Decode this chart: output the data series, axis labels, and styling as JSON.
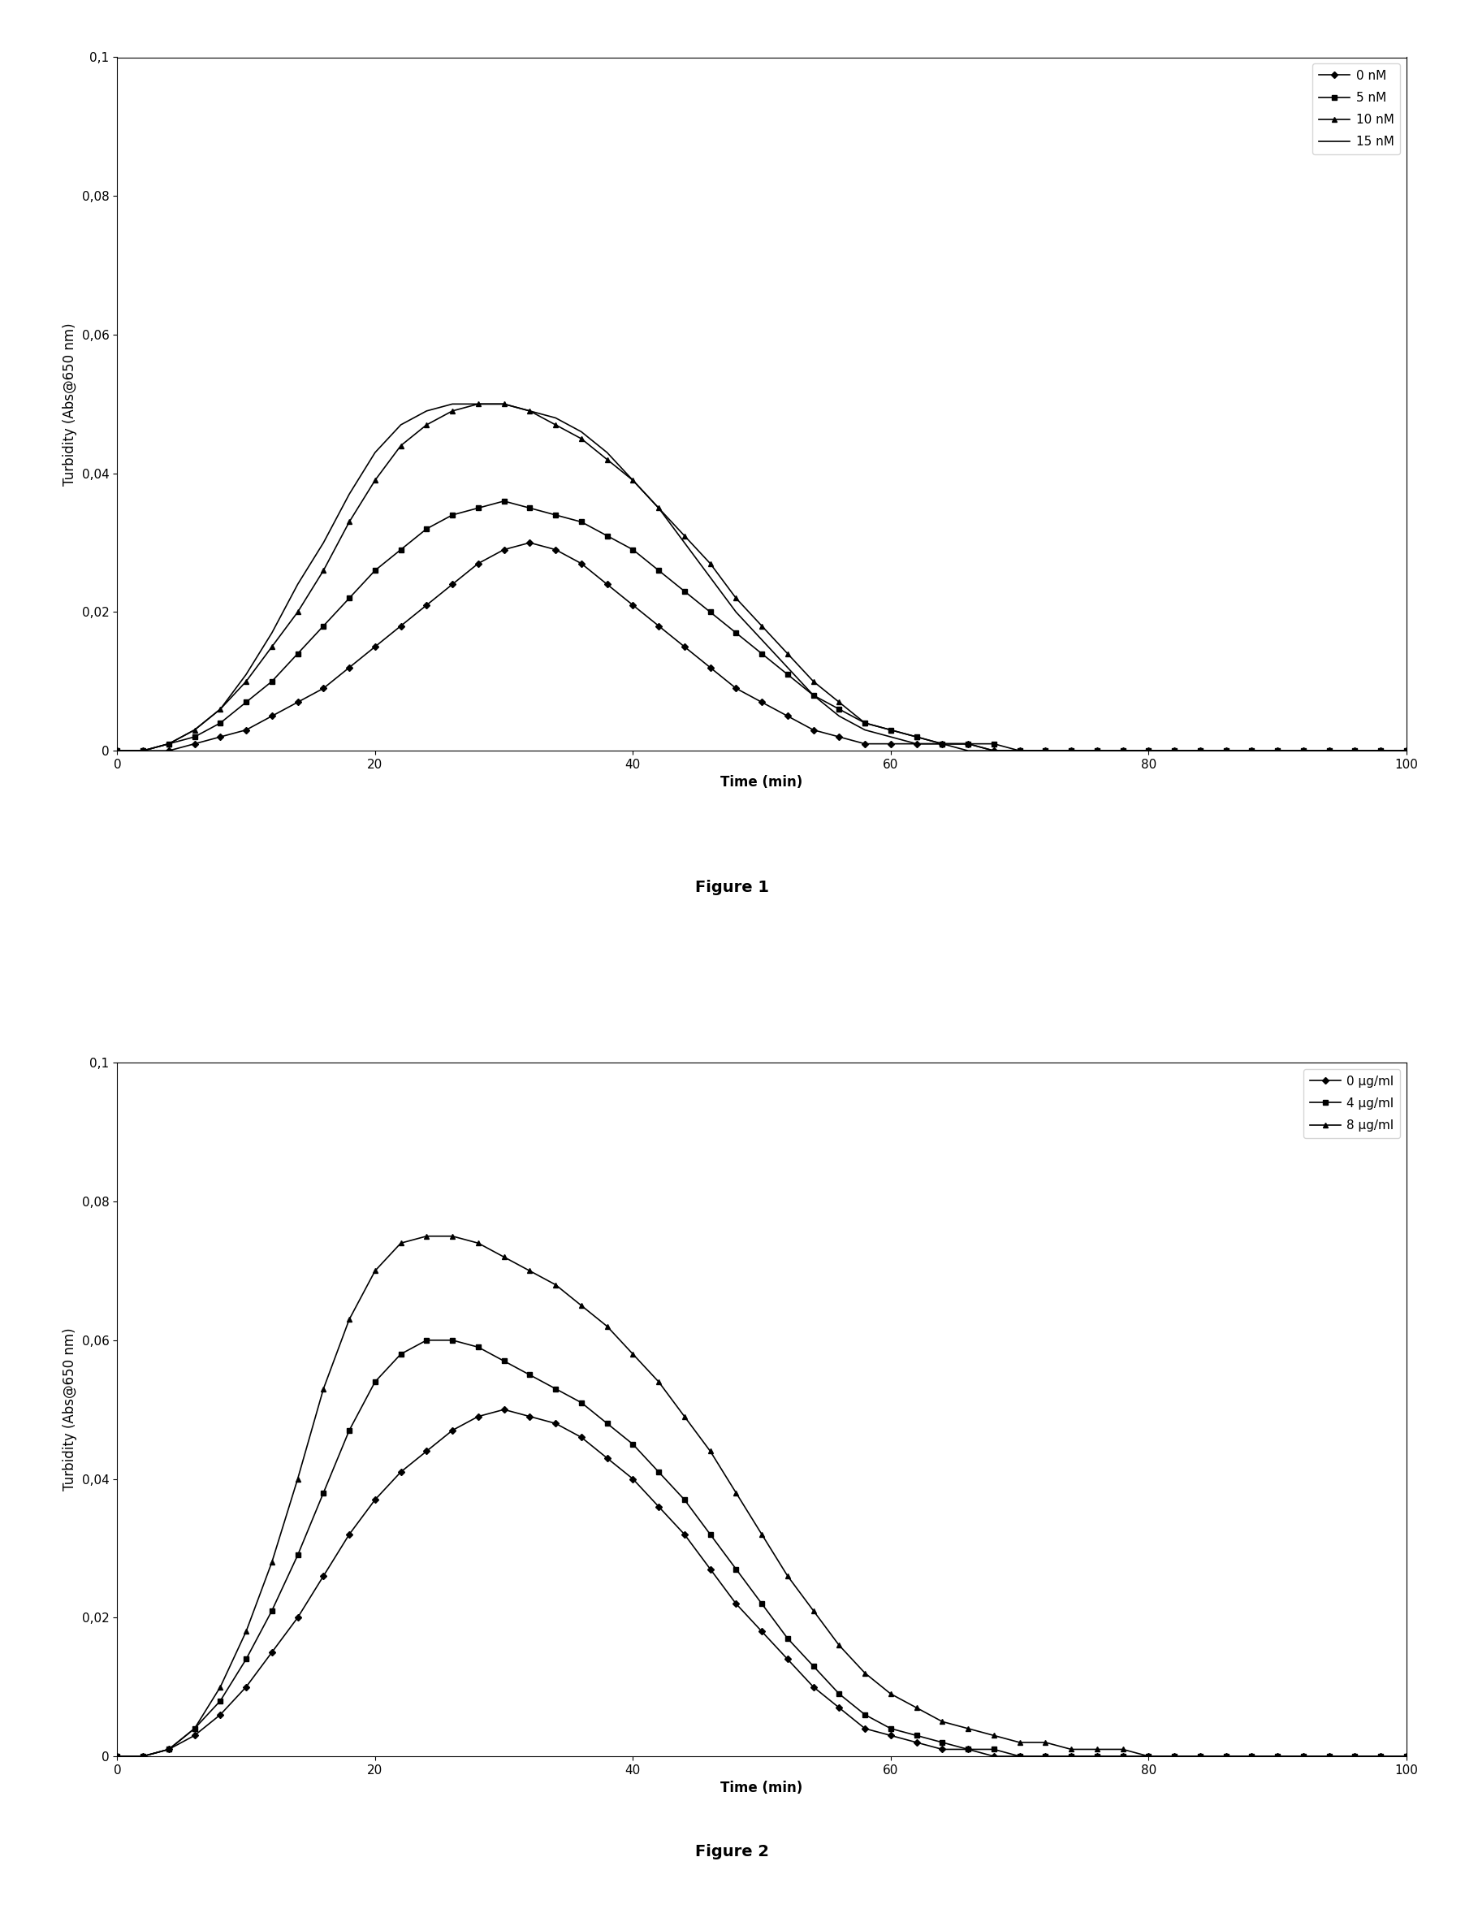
{
  "fig1": {
    "title": "Figure 1",
    "ylabel": "Turbidity (Abs@650 nm)",
    "xlabel": "Time (min)",
    "ylim": [
      0,
      0.1
    ],
    "xlim": [
      0,
      100
    ],
    "yticks": [
      0,
      0.02,
      0.04,
      0.06,
      0.08,
      0.1
    ],
    "ytick_labels": [
      "0",
      "0,02",
      "0,04",
      "0,06",
      "0,08",
      "0,1"
    ],
    "xticks": [
      0,
      20,
      40,
      60,
      80,
      100
    ],
    "series": [
      {
        "label": "0 nM",
        "marker": "D",
        "x": [
          0,
          2,
          4,
          6,
          8,
          10,
          12,
          14,
          16,
          18,
          20,
          22,
          24,
          26,
          28,
          30,
          32,
          34,
          36,
          38,
          40,
          42,
          44,
          46,
          48,
          50,
          52,
          54,
          56,
          58,
          60,
          62,
          64,
          66,
          68,
          70,
          72,
          74,
          76,
          78,
          80,
          82,
          84,
          86,
          88,
          90,
          92,
          94,
          96,
          98,
          100
        ],
        "y": [
          0,
          0,
          0,
          0.001,
          0.002,
          0.003,
          0.005,
          0.007,
          0.009,
          0.012,
          0.015,
          0.018,
          0.021,
          0.024,
          0.027,
          0.029,
          0.03,
          0.029,
          0.027,
          0.024,
          0.021,
          0.018,
          0.015,
          0.012,
          0.009,
          0.007,
          0.005,
          0.003,
          0.002,
          0.001,
          0.001,
          0.001,
          0.001,
          0.001,
          0,
          0,
          0,
          0,
          0,
          0,
          0,
          0,
          0,
          0,
          0,
          0,
          0,
          0,
          0,
          0,
          0
        ]
      },
      {
        "label": "5 nM",
        "marker": "s",
        "x": [
          0,
          2,
          4,
          6,
          8,
          10,
          12,
          14,
          16,
          18,
          20,
          22,
          24,
          26,
          28,
          30,
          32,
          34,
          36,
          38,
          40,
          42,
          44,
          46,
          48,
          50,
          52,
          54,
          56,
          58,
          60,
          62,
          64,
          66,
          68,
          70,
          72,
          74,
          76,
          78,
          80,
          82,
          84,
          86,
          88,
          90,
          92,
          94,
          96,
          98,
          100
        ],
        "y": [
          0,
          0,
          0.001,
          0.002,
          0.004,
          0.007,
          0.01,
          0.014,
          0.018,
          0.022,
          0.026,
          0.029,
          0.032,
          0.034,
          0.035,
          0.036,
          0.035,
          0.034,
          0.033,
          0.031,
          0.029,
          0.026,
          0.023,
          0.02,
          0.017,
          0.014,
          0.011,
          0.008,
          0.006,
          0.004,
          0.003,
          0.002,
          0.001,
          0.001,
          0.001,
          0,
          0,
          0,
          0,
          0,
          0,
          0,
          0,
          0,
          0,
          0,
          0,
          0,
          0,
          0,
          0
        ]
      },
      {
        "label": "10 nM",
        "marker": "^",
        "x": [
          0,
          2,
          4,
          6,
          8,
          10,
          12,
          14,
          16,
          18,
          20,
          22,
          24,
          26,
          28,
          30,
          32,
          34,
          36,
          38,
          40,
          42,
          44,
          46,
          48,
          50,
          52,
          54,
          56,
          58,
          60,
          62,
          64,
          66,
          68,
          70,
          72,
          74,
          76,
          78,
          80,
          82,
          84,
          86,
          88,
          90,
          92,
          94,
          96,
          98,
          100
        ],
        "y": [
          0,
          0,
          0.001,
          0.003,
          0.006,
          0.01,
          0.015,
          0.02,
          0.026,
          0.033,
          0.039,
          0.044,
          0.047,
          0.049,
          0.05,
          0.05,
          0.049,
          0.047,
          0.045,
          0.042,
          0.039,
          0.035,
          0.031,
          0.027,
          0.022,
          0.018,
          0.014,
          0.01,
          0.007,
          0.004,
          0.003,
          0.002,
          0.001,
          0.001,
          0,
          0,
          0,
          0,
          0,
          0,
          0,
          0,
          0,
          0,
          0,
          0,
          0,
          0,
          0,
          0,
          0
        ]
      },
      {
        "label": "15 nM",
        "marker": null,
        "x": [
          0,
          2,
          4,
          6,
          8,
          10,
          12,
          14,
          16,
          18,
          20,
          22,
          24,
          26,
          28,
          30,
          32,
          34,
          36,
          38,
          40,
          42,
          44,
          46,
          48,
          50,
          52,
          54,
          56,
          58,
          60,
          62,
          64,
          66,
          68,
          70,
          72,
          74,
          76,
          78,
          80,
          82,
          84,
          86,
          88,
          90,
          92,
          94,
          96,
          98,
          100
        ],
        "y": [
          0,
          0,
          0.001,
          0.003,
          0.006,
          0.011,
          0.017,
          0.024,
          0.03,
          0.037,
          0.043,
          0.047,
          0.049,
          0.05,
          0.05,
          0.05,
          0.049,
          0.048,
          0.046,
          0.043,
          0.039,
          0.035,
          0.03,
          0.025,
          0.02,
          0.016,
          0.012,
          0.008,
          0.005,
          0.003,
          0.002,
          0.001,
          0.001,
          0,
          0,
          0,
          0,
          0,
          0,
          0,
          0,
          0,
          0,
          0,
          0,
          0,
          0,
          0,
          0,
          0,
          0
        ]
      }
    ]
  },
  "fig2": {
    "title": "Figure 2",
    "ylabel": "Turbidity (Abs@650 nm)",
    "xlabel": "Time (min)",
    "ylim": [
      0,
      0.1
    ],
    "xlim": [
      0,
      100
    ],
    "yticks": [
      0,
      0.02,
      0.04,
      0.06,
      0.08,
      0.1
    ],
    "ytick_labels": [
      "0",
      "0,02",
      "0,04",
      "0,06",
      "0,08",
      "0,1"
    ],
    "xticks": [
      0,
      20,
      40,
      60,
      80,
      100
    ],
    "series": [
      {
        "label": "0 µg/ml",
        "marker": "D",
        "x": [
          0,
          2,
          4,
          6,
          8,
          10,
          12,
          14,
          16,
          18,
          20,
          22,
          24,
          26,
          28,
          30,
          32,
          34,
          36,
          38,
          40,
          42,
          44,
          46,
          48,
          50,
          52,
          54,
          56,
          58,
          60,
          62,
          64,
          66,
          68,
          70,
          72,
          74,
          76,
          78,
          80,
          82,
          84,
          86,
          88,
          90,
          92,
          94,
          96,
          98,
          100
        ],
        "y": [
          0,
          0,
          0.001,
          0.003,
          0.006,
          0.01,
          0.015,
          0.02,
          0.026,
          0.032,
          0.037,
          0.041,
          0.044,
          0.047,
          0.049,
          0.05,
          0.049,
          0.048,
          0.046,
          0.043,
          0.04,
          0.036,
          0.032,
          0.027,
          0.022,
          0.018,
          0.014,
          0.01,
          0.007,
          0.004,
          0.003,
          0.002,
          0.001,
          0.001,
          0,
          0,
          0,
          0,
          0,
          0,
          0,
          0,
          0,
          0,
          0,
          0,
          0,
          0,
          0,
          0,
          0
        ]
      },
      {
        "label": "4 µg/ml",
        "marker": "s",
        "x": [
          0,
          2,
          4,
          6,
          8,
          10,
          12,
          14,
          16,
          18,
          20,
          22,
          24,
          26,
          28,
          30,
          32,
          34,
          36,
          38,
          40,
          42,
          44,
          46,
          48,
          50,
          52,
          54,
          56,
          58,
          60,
          62,
          64,
          66,
          68,
          70,
          72,
          74,
          76,
          78,
          80,
          82,
          84,
          86,
          88,
          90,
          92,
          94,
          96,
          98,
          100
        ],
        "y": [
          0,
          0,
          0.001,
          0.004,
          0.008,
          0.014,
          0.021,
          0.029,
          0.038,
          0.047,
          0.054,
          0.058,
          0.06,
          0.06,
          0.059,
          0.057,
          0.055,
          0.053,
          0.051,
          0.048,
          0.045,
          0.041,
          0.037,
          0.032,
          0.027,
          0.022,
          0.017,
          0.013,
          0.009,
          0.006,
          0.004,
          0.003,
          0.002,
          0.001,
          0.001,
          0,
          0,
          0,
          0,
          0,
          0,
          0,
          0,
          0,
          0,
          0,
          0,
          0,
          0,
          0,
          0
        ]
      },
      {
        "label": "8 µg/ml",
        "marker": "^",
        "x": [
          0,
          2,
          4,
          6,
          8,
          10,
          12,
          14,
          16,
          18,
          20,
          22,
          24,
          26,
          28,
          30,
          32,
          34,
          36,
          38,
          40,
          42,
          44,
          46,
          48,
          50,
          52,
          54,
          56,
          58,
          60,
          62,
          64,
          66,
          68,
          70,
          72,
          74,
          76,
          78,
          80,
          82,
          84,
          86,
          88,
          90,
          92,
          94,
          96,
          98,
          100
        ],
        "y": [
          0,
          0,
          0.001,
          0.004,
          0.01,
          0.018,
          0.028,
          0.04,
          0.053,
          0.063,
          0.07,
          0.074,
          0.075,
          0.075,
          0.074,
          0.072,
          0.07,
          0.068,
          0.065,
          0.062,
          0.058,
          0.054,
          0.049,
          0.044,
          0.038,
          0.032,
          0.026,
          0.021,
          0.016,
          0.012,
          0.009,
          0.007,
          0.005,
          0.004,
          0.003,
          0.002,
          0.002,
          0.001,
          0.001,
          0.001,
          0,
          0,
          0,
          0,
          0,
          0,
          0,
          0,
          0,
          0,
          0
        ]
      }
    ]
  },
  "line_color": "#000000",
  "marker_size": 4,
  "line_width": 1.2,
  "legend_fontsize": 11,
  "axis_fontsize": 12,
  "tick_fontsize": 11,
  "title_fontsize": 14,
  "background_color": "#ffffff"
}
